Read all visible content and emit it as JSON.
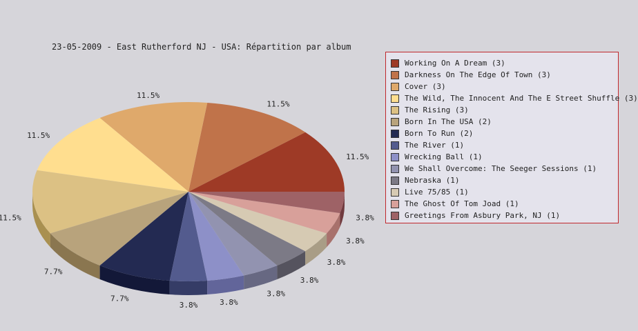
{
  "chart_data": {
    "type": "pie",
    "title": "23-05-2009 - East Rutherford NJ - USA:  Répartition par album",
    "legend_position": "right",
    "slices": [
      {
        "name": "Working On A Dream (3)",
        "value": 3,
        "label": "11.5%",
        "color": "#9e3a26",
        "side": "#6b1508"
      },
      {
        "name": "Darkness On The Edge Of Town (3)",
        "value": 3,
        "label": "11.5%",
        "color": "#c0734a",
        "side": "#8e4718"
      },
      {
        "name": "Cover (3)",
        "value": 3,
        "label": "11.5%",
        "color": "#dfa96b",
        "side": "#b07a36"
      },
      {
        "name": "The Wild, The Innocent And The E Street Shuffle (3)",
        "value": 3,
        "label": "11.5%",
        "color": "#ffde8f",
        "side": "#d0b45c"
      },
      {
        "name": "The Rising (3)",
        "value": 3,
        "label": "11.5%",
        "color": "#dcc184",
        "side": "#a99050"
      },
      {
        "name": "Born In The USA (2)",
        "value": 2,
        "label": "7.7%",
        "color": "#b8a37c",
        "side": "#8a7650"
      },
      {
        "name": "Born To Run (2)",
        "value": 2,
        "label": "7.7%",
        "color": "#232a52",
        "side": "#131838"
      },
      {
        "name": "The River (1)",
        "value": 1,
        "label": "3.8%",
        "color": "#535b8e",
        "side": "#353c66"
      },
      {
        "name": "Wrecking Ball (1)",
        "value": 1,
        "label": "3.8%",
        "color": "#8d90c8",
        "side": "#62659a"
      },
      {
        "name": "We Shall Overcome: The Seeger Sessions (1)",
        "value": 1,
        "label": "3.8%",
        "color": "#9293b0",
        "side": "#676882"
      },
      {
        "name": "Nebraska (1)",
        "value": 1,
        "label": "3.8%",
        "color": "#7c7a86",
        "side": "#55535e"
      },
      {
        "name": "Live 75/85 (1)",
        "value": 1,
        "label": "3.8%",
        "color": "#d6cab3",
        "side": "#a99d86"
      },
      {
        "name": "The Ghost Of Tom Joad (1)",
        "value": 1,
        "label": "3.8%",
        "color": "#d8a09a",
        "side": "#a8716c"
      },
      {
        "name": "Greetings From Asbury Park, NJ (1)",
        "value": 1,
        "label": "3.8%",
        "color": "#9e6266",
        "side": "#703a3e"
      }
    ]
  }
}
